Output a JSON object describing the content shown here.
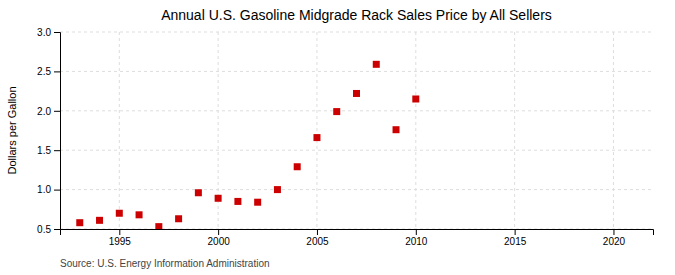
{
  "chart_data": {
    "type": "scatter",
    "title": "Annual U.S. Gasoline Midgrade Rack Sales Price by All Sellers",
    "ylabel": "Dollars per Gallon",
    "source": "Source: U.S. Energy Information Administration",
    "x": [
      1993,
      1994,
      1995,
      1996,
      1997,
      1998,
      1999,
      2000,
      2001,
      2002,
      2003,
      2004,
      2005,
      2006,
      2007,
      2008,
      2009,
      2010
    ],
    "values": [
      0.58,
      0.61,
      0.7,
      0.68,
      0.53,
      0.63,
      0.96,
      0.89,
      0.85,
      0.84,
      1.0,
      1.29,
      1.66,
      1.99,
      2.22,
      2.59,
      1.76,
      2.15
    ],
    "color": "#cc0000",
    "marker": "square",
    "grid": true,
    "xlim": [
      1992,
      2022
    ],
    "ylim": [
      0.5,
      3.0
    ],
    "xticks": [
      1995,
      2000,
      2005,
      2010,
      2015,
      2020
    ],
    "yticks": [
      0.5,
      {
        "value": 1.0,
        "label": "1.0"
      },
      1.5,
      {
        "value": 2.0,
        "label": "2.0"
      },
      2.5,
      {
        "value": 3.0,
        "label": "3.0"
      }
    ]
  }
}
